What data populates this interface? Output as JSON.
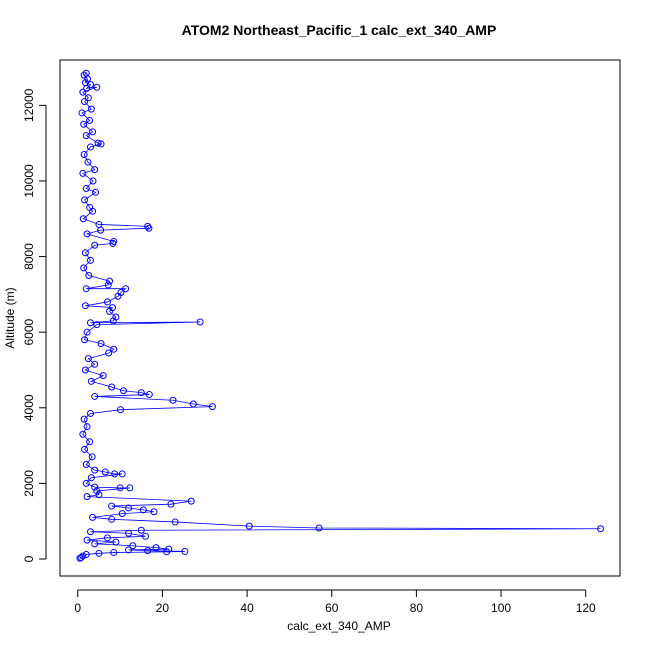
{
  "chart_data": {
    "type": "scatter",
    "title": "ATOM2 Northeast_Pacific_1 calc_ext_340_AMP",
    "xlabel": "calc_ext_340_AMP",
    "ylabel": "Altitude (m)",
    "xlim": [
      -4.2,
      128.1
    ],
    "ylim": [
      -450,
      13200
    ],
    "x_ticks": [
      0,
      20,
      40,
      60,
      80,
      100,
      120
    ],
    "x_tick_labels": [
      "0",
      "20",
      "40",
      "60",
      "80",
      "100",
      "120"
    ],
    "y_ticks": [
      0,
      2000,
      4000,
      6000,
      8000,
      10000,
      12000
    ],
    "y_tick_labels": [
      "0",
      "2000",
      "4000",
      "6000",
      "8000",
      "10000",
      "12000"
    ],
    "grid": false,
    "series_color": "#0000ff",
    "connect_points": true,
    "series": [
      {
        "values": [
          [
            2.0,
            12850
          ],
          [
            1.5,
            12800
          ],
          [
            2.3,
            12700
          ],
          [
            1.8,
            12600
          ],
          [
            3.0,
            12550
          ],
          [
            2.1,
            12450
          ],
          [
            4.5,
            12480
          ],
          [
            1.2,
            12350
          ],
          [
            2.5,
            12200
          ],
          [
            1.6,
            12100
          ],
          [
            3.2,
            11900
          ],
          [
            1.0,
            11800
          ],
          [
            2.8,
            11600
          ],
          [
            1.4,
            11500
          ],
          [
            3.5,
            11300
          ],
          [
            2.0,
            11200
          ],
          [
            4.8,
            11000
          ],
          [
            5.5,
            10980
          ],
          [
            3.0,
            10900
          ],
          [
            1.5,
            10700
          ],
          [
            2.4,
            10500
          ],
          [
            4.0,
            10300
          ],
          [
            1.2,
            10200
          ],
          [
            3.6,
            10000
          ],
          [
            2.0,
            9800
          ],
          [
            4.2,
            9700
          ],
          [
            1.6,
            9500
          ],
          [
            2.8,
            9300
          ],
          [
            3.5,
            9200
          ],
          [
            1.3,
            9000
          ],
          [
            5.0,
            8850
          ],
          [
            16.5,
            8800
          ],
          [
            16.8,
            8750
          ],
          [
            5.4,
            8700
          ],
          [
            2.2,
            8600
          ],
          [
            8.5,
            8400
          ],
          [
            8.3,
            8350
          ],
          [
            4.0,
            8300
          ],
          [
            1.8,
            8100
          ],
          [
            3.0,
            7900
          ],
          [
            1.4,
            7700
          ],
          [
            2.6,
            7500
          ],
          [
            7.5,
            7350
          ],
          [
            7.2,
            7250
          ],
          [
            2.0,
            7150
          ],
          [
            11.3,
            7150
          ],
          [
            10.2,
            7050
          ],
          [
            9.5,
            6950
          ],
          [
            7.0,
            6800
          ],
          [
            1.8,
            6700
          ],
          [
            8.2,
            6650
          ],
          [
            7.5,
            6550
          ],
          [
            9.0,
            6400
          ],
          [
            8.4,
            6300
          ],
          [
            3.0,
            6250
          ],
          [
            28.9,
            6270
          ],
          [
            4.5,
            6200
          ],
          [
            2.2,
            6000
          ],
          [
            1.6,
            5800
          ],
          [
            5.5,
            5700
          ],
          [
            8.5,
            5550
          ],
          [
            7.3,
            5450
          ],
          [
            2.5,
            5300
          ],
          [
            4.0,
            5150
          ],
          [
            1.8,
            5000
          ],
          [
            6.0,
            4850
          ],
          [
            3.2,
            4700
          ],
          [
            8.0,
            4550
          ],
          [
            10.8,
            4450
          ],
          [
            15.0,
            4400
          ],
          [
            16.9,
            4350
          ],
          [
            4.0,
            4300
          ],
          [
            22.5,
            4200
          ],
          [
            27.3,
            4100
          ],
          [
            31.8,
            4030
          ],
          [
            10.1,
            3950
          ],
          [
            3.0,
            3850
          ],
          [
            1.5,
            3700
          ],
          [
            2.2,
            3500
          ],
          [
            1.2,
            3300
          ],
          [
            2.8,
            3100
          ],
          [
            1.6,
            2900
          ],
          [
            3.4,
            2700
          ],
          [
            2.0,
            2500
          ],
          [
            4.0,
            2350
          ],
          [
            6.5,
            2300
          ],
          [
            8.7,
            2250
          ],
          [
            10.5,
            2250
          ],
          [
            3.2,
            2150
          ],
          [
            2.0,
            2000
          ],
          [
            4.0,
            1900
          ],
          [
            10.0,
            1880
          ],
          [
            12.3,
            1880
          ],
          [
            4.5,
            1800
          ],
          [
            5.0,
            1700
          ],
          [
            2.2,
            1650
          ],
          [
            26.8,
            1530
          ],
          [
            22.0,
            1450
          ],
          [
            8.0,
            1400
          ],
          [
            12.0,
            1350
          ],
          [
            15.5,
            1300
          ],
          [
            18.0,
            1250
          ],
          [
            10.5,
            1200
          ],
          [
            3.5,
            1100
          ],
          [
            8.0,
            1050
          ],
          [
            23.0,
            980
          ],
          [
            40.5,
            870
          ],
          [
            57.0,
            820
          ],
          [
            123.5,
            800
          ],
          [
            15.0,
            760
          ],
          [
            3.0,
            720
          ],
          [
            12.0,
            680
          ],
          [
            16.0,
            600
          ],
          [
            7.0,
            560
          ],
          [
            2.2,
            500
          ],
          [
            9.0,
            450
          ],
          [
            4.0,
            400
          ],
          [
            13.0,
            350
          ],
          [
            18.5,
            300
          ],
          [
            21.5,
            260
          ],
          [
            12.0,
            240
          ],
          [
            16.5,
            220
          ],
          [
            25.3,
            200
          ],
          [
            21.0,
            190
          ],
          [
            8.5,
            170
          ],
          [
            5.0,
            150
          ],
          [
            2.0,
            120
          ],
          [
            1.2,
            80
          ],
          [
            0.8,
            40
          ],
          [
            0.5,
            20
          ]
        ]
      }
    ]
  }
}
